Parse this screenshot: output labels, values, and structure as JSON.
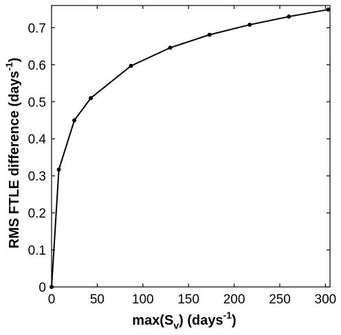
{
  "chart_data": {
    "type": "line",
    "title": "",
    "xlabel_main": "max(S",
    "xlabel_sub": "v",
    "xlabel_mid": ") (days",
    "xlabel_sup": "-1",
    "xlabel_end": ")",
    "ylabel_main": "RMS FTLE difference  (days",
    "ylabel_sup": "-1",
    "ylabel_end": ")",
    "xlim": [
      0,
      305
    ],
    "ylim": [
      0,
      0.76
    ],
    "xticks": [
      0,
      50,
      100,
      150,
      200,
      250,
      300
    ],
    "yticks": [
      0,
      0.1,
      0.2,
      0.3,
      0.4,
      0.5,
      0.6,
      0.7
    ],
    "ytick_labels": [
      "0",
      "0.1",
      "0.2",
      "0.3",
      "0.4",
      "0.5",
      "0.6",
      "0.7"
    ],
    "grid": false,
    "series": [
      {
        "x": [
          0,
          8,
          25,
          43,
          87,
          130,
          173,
          217,
          260,
          303
        ],
        "y": [
          0,
          0.317,
          0.45,
          0.51,
          0.597,
          0.646,
          0.681,
          0.708,
          0.73,
          0.749
        ]
      }
    ],
    "colors": {
      "line": "#000000",
      "marker": "#000000"
    }
  }
}
